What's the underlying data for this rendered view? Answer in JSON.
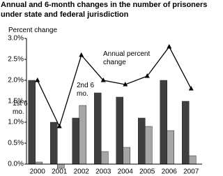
{
  "chart_data": {
    "type": "bar",
    "title": "Annual and 6-month changes in the number of prisoners under state and federal jurisdiction",
    "y_label": "Percent change",
    "categories": [
      "2000",
      "2001",
      "2002",
      "2003",
      "2004",
      "2005",
      "2006",
      "2007"
    ],
    "series": [
      {
        "name": "1st 6 mo.",
        "type": "bar",
        "color": "#3f3f3f",
        "values": [
          2.0,
          1.0,
          1.1,
          1.7,
          1.6,
          1.1,
          2.0,
          1.5
        ]
      },
      {
        "name": "2nd 6 mo.",
        "type": "bar",
        "color": "#a6a6a6",
        "values": [
          0.05,
          -0.1,
          1.4,
          0.3,
          0.4,
          0.9,
          0.8,
          0.2
        ]
      },
      {
        "name": "Annual percent change",
        "type": "line",
        "color": "#000000",
        "values": [
          2.0,
          0.9,
          2.6,
          2.0,
          1.9,
          2.1,
          2.8,
          1.8
        ]
      }
    ],
    "ylim": [
      0,
      3.0
    ],
    "yticks": [
      {
        "value": 0,
        "label": "0.0%"
      },
      {
        "value": 0.5,
        "label": "0.5%"
      },
      {
        "value": 1.0,
        "label": "1.0%"
      },
      {
        "value": 1.5,
        "label": "1.5%"
      },
      {
        "value": 2.0,
        "label": "2.0%"
      },
      {
        "value": 2.5,
        "label": "2.5%"
      },
      {
        "value": 3.0,
        "label": "3.0%"
      }
    ],
    "grid": false
  }
}
